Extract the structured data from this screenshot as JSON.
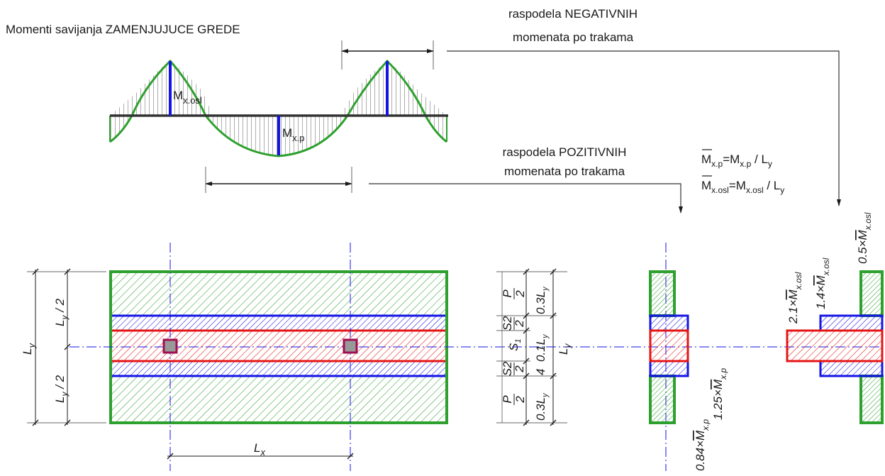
{
  "colors": {
    "green": "#2ea02e",
    "blue": "#1414e6",
    "red": "#e61414",
    "column": "#a01050",
    "line": "#1a1a1a",
    "axis": "#1414e6"
  },
  "moment_diagram": {
    "title": "Momenti savijanja ZAMENJUJUCE GREDE",
    "support_moment_label": "M",
    "support_moment_sub": "x.osl",
    "span_moment_label": "M",
    "span_moment_sub": "x.p"
  },
  "annotations": {
    "negative_line1": "raspodela NEGATIVNIH",
    "negative_line2": "momenata po trakama",
    "positive_line1": "raspodela POZITIVNIH",
    "positive_line2": "momenata po trakama"
  },
  "formulas": {
    "f1_lhs_main": "M",
    "f1_lhs_sub": "x.p",
    "f1_eq": "=M",
    "f1_rhs_sub": "x.p",
    "f1_div": " / L",
    "f1_div_sub": "y",
    "f2_lhs_main": "M",
    "f2_lhs_sub": "x.osl",
    "f2_eq": "=M",
    "f2_rhs_sub": "x.osl",
    "f2_div": " / L",
    "f2_div_sub": "y"
  },
  "plan_dims": {
    "ly": "L",
    "ly_sub": "y",
    "ly_half": " / 2",
    "lx": "L",
    "lx_sub": "x"
  },
  "strip_dims": {
    "p": "P",
    "s2": "S2",
    "s1": "S",
    "s1_sub": "1",
    "two": "2",
    "c03": "0.3",
    "c01": "0.1",
    "c04": "4",
    "ly": "L",
    "ly_sub": "y"
  },
  "coefficients": {
    "positive_side": "0.84×",
    "positive_middle": "1.25×",
    "m_letter": "M",
    "sub_p": "x.p",
    "negative_middle": "2.1×",
    "negative_column": "1.4×",
    "negative_side": "0.5×",
    "sub_osl": "x.osl"
  }
}
